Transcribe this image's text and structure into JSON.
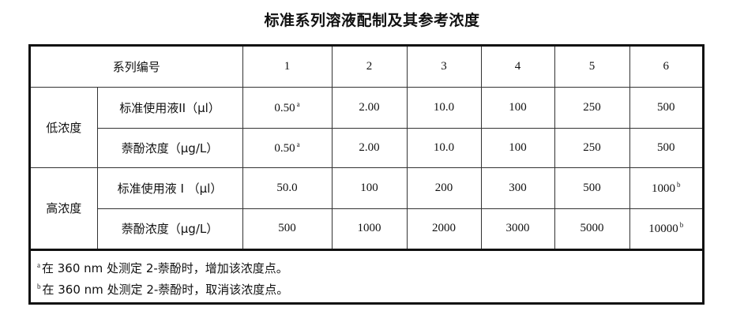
{
  "title": "标准系列溶液配制及其参考浓度",
  "table": {
    "header_label": "系列编号",
    "series_numbers": [
      "1",
      "2",
      "3",
      "4",
      "5",
      "6"
    ],
    "groups": [
      {
        "label": "低浓度",
        "rows": [
          {
            "label": "标准使用液II（μl）",
            "values": [
              {
                "v": "0.50",
                "sup": "a"
              },
              {
                "v": "2.00"
              },
              {
                "v": "10.0"
              },
              {
                "v": "100"
              },
              {
                "v": "250"
              },
              {
                "v": "500"
              }
            ]
          },
          {
            "label": "萘酚浓度（μg/L）",
            "values": [
              {
                "v": "0.50",
                "sup": "a"
              },
              {
                "v": "2.00"
              },
              {
                "v": "10.0"
              },
              {
                "v": "100"
              },
              {
                "v": "250"
              },
              {
                "v": "500"
              }
            ]
          }
        ]
      },
      {
        "label": "高浓度",
        "rows": [
          {
            "label": "标准使用液 I （μl）",
            "values": [
              {
                "v": "50.0"
              },
              {
                "v": "100"
              },
              {
                "v": "200"
              },
              {
                "v": "300"
              },
              {
                "v": "500"
              },
              {
                "v": "1000",
                "sup": "b"
              }
            ]
          },
          {
            "label": "萘酚浓度（μg/L）",
            "values": [
              {
                "v": "500"
              },
              {
                "v": "1000"
              },
              {
                "v": "2000"
              },
              {
                "v": "3000"
              },
              {
                "v": "5000"
              },
              {
                "v": "10000",
                "sup": "b"
              }
            ]
          }
        ]
      }
    ]
  },
  "notes": [
    {
      "mark": "a",
      "text": "在 360 nm 处测定 2-萘酚时，增加该浓度点。"
    },
    {
      "mark": "b",
      "text": "在 360 nm 处测定 2-萘酚时，取消该浓度点。"
    }
  ]
}
